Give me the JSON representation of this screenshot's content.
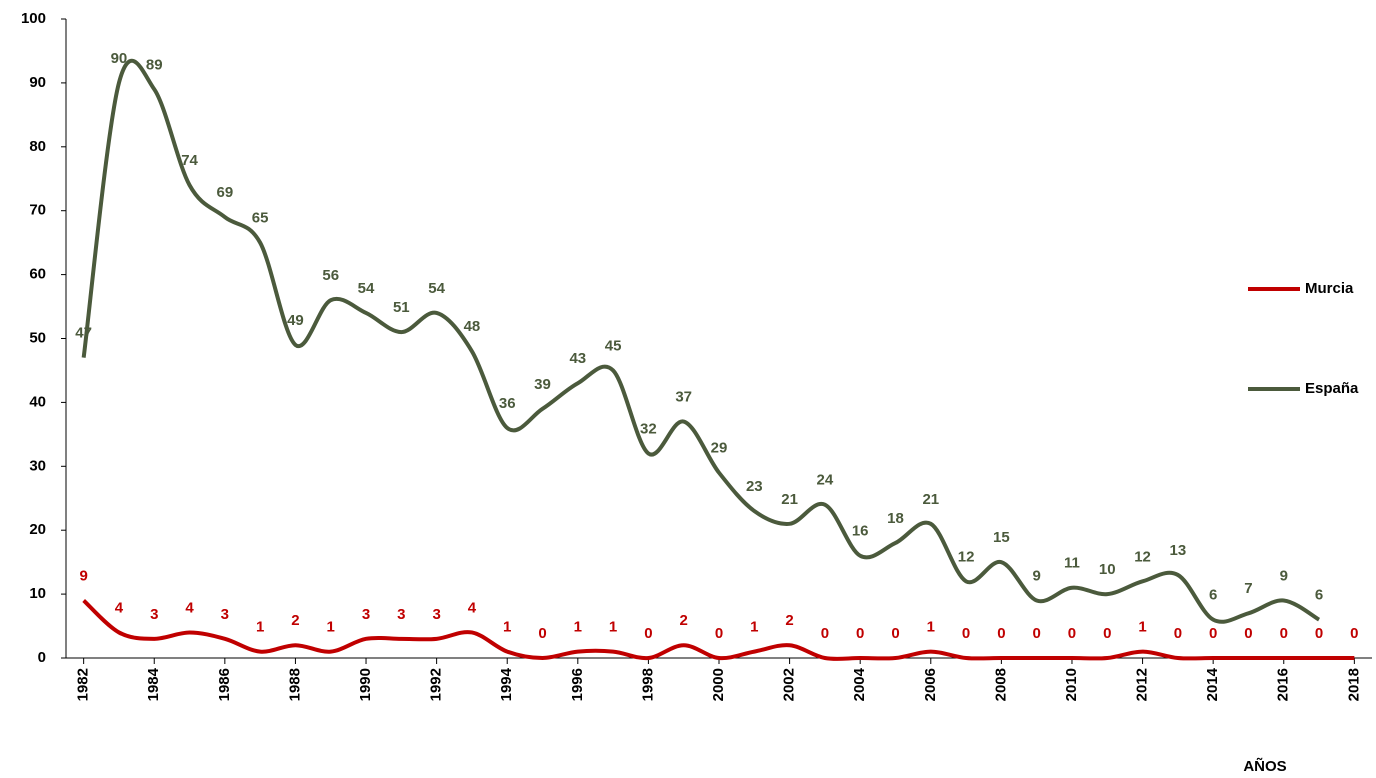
{
  "chart_data": {
    "type": "line",
    "x": [
      1982,
      1983,
      1984,
      1985,
      1986,
      1987,
      1988,
      1989,
      1990,
      1991,
      1992,
      1993,
      1994,
      1995,
      1996,
      1997,
      1998,
      1999,
      2000,
      2001,
      2002,
      2003,
      2004,
      2005,
      2006,
      2007,
      2008,
      2009,
      2010,
      2011,
      2012,
      2013,
      2014,
      2015,
      2016,
      2017,
      2018
    ],
    "series": [
      {
        "name": "Murcia",
        "color": "#c00000",
        "values": [
          9,
          4,
          3,
          4,
          3,
          1,
          2,
          1,
          3,
          3,
          3,
          4,
          1,
          0,
          1,
          1,
          0,
          2,
          0,
          1,
          2,
          0,
          0,
          0,
          1,
          0,
          0,
          0,
          0,
          0,
          1,
          0,
          0,
          0,
          0,
          0,
          0
        ]
      },
      {
        "name": "España",
        "color": "#4b5a3c",
        "values": [
          47,
          90,
          89,
          74,
          69,
          65,
          49,
          56,
          54,
          51,
          54,
          48,
          36,
          39,
          43,
          45,
          32,
          37,
          29,
          23,
          21,
          24,
          16,
          18,
          21,
          12,
          15,
          9,
          11,
          10,
          12,
          13,
          6,
          7,
          9,
          6,
          null
        ]
      }
    ],
    "x_label": "AÑOS",
    "xlim": [
      1981.5,
      2018.5
    ],
    "xticks": [
      1982,
      1984,
      1986,
      1988,
      1990,
      1992,
      1994,
      1996,
      1998,
      2000,
      2002,
      2004,
      2006,
      2008,
      2010,
      2012,
      2014,
      2016,
      2018
    ],
    "ylim": [
      0,
      100
    ],
    "yticks": [
      0,
      10,
      20,
      30,
      40,
      50,
      60,
      70,
      80,
      90,
      100
    ],
    "legend": "right"
  }
}
